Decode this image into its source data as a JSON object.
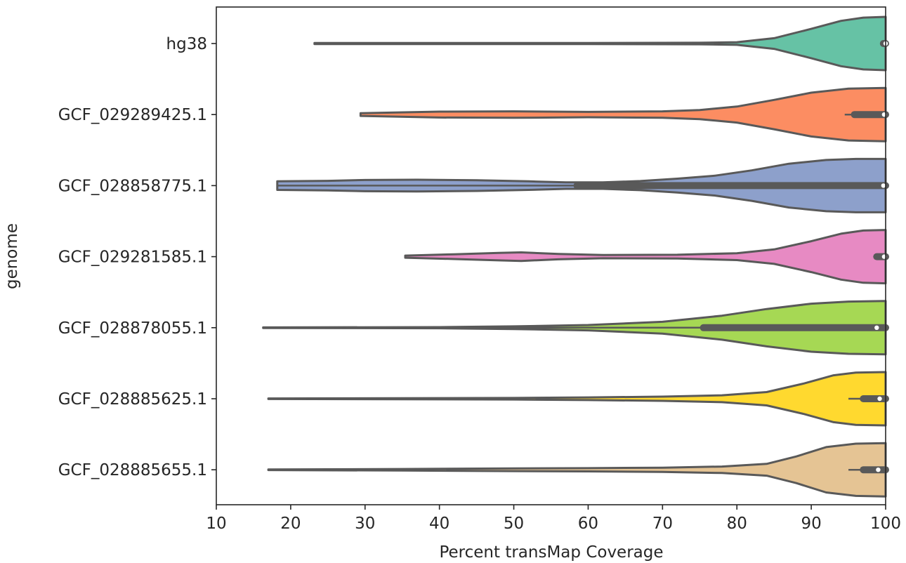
{
  "chart_data": {
    "type": "violin",
    "orientation": "horizontal",
    "xlabel": "Percent transMap Coverage",
    "ylabel": "genome",
    "xlim": [
      10,
      100
    ],
    "xticks": [
      10,
      20,
      30,
      40,
      50,
      60,
      70,
      80,
      90,
      100
    ],
    "grid": false,
    "categories": [
      "hg38",
      "GCF_029289425.1",
      "GCF_028858775.1",
      "GCF_029281585.1",
      "GCF_028878055.1",
      "GCF_028885625.1",
      "GCF_028885655.1"
    ],
    "colors": [
      "#66c2a5",
      "#fc8d62",
      "#8da0cb",
      "#e78ac3",
      "#a6d854",
      "#ffd92f",
      "#e5c494"
    ],
    "outline_color": "#595959",
    "series": [
      {
        "min": 23.2,
        "max": 100,
        "median": 100,
        "q1": 100,
        "q3": 100,
        "whisker_low": 100,
        "density": [
          [
            23.2,
            0.02
          ],
          [
            40,
            0.02
          ],
          [
            60,
            0.02
          ],
          [
            75,
            0.03
          ],
          [
            80,
            0.05
          ],
          [
            85,
            0.2
          ],
          [
            90,
            0.55
          ],
          [
            94,
            0.85
          ],
          [
            97,
            0.97
          ],
          [
            100,
            1.0
          ]
        ]
      },
      {
        "min": 29.4,
        "max": 100,
        "median": 99.8,
        "q1": 95.8,
        "q3": 100,
        "whisker_low": 94.5,
        "density": [
          [
            29.4,
            0.05
          ],
          [
            40,
            0.11
          ],
          [
            50,
            0.12
          ],
          [
            60,
            0.1
          ],
          [
            70,
            0.12
          ],
          [
            75,
            0.17
          ],
          [
            80,
            0.3
          ],
          [
            85,
            0.55
          ],
          [
            90,
            0.82
          ],
          [
            95,
            0.97
          ],
          [
            100,
            1.0
          ]
        ]
      },
      {
        "min": 18.2,
        "max": 100,
        "median": 99.7,
        "q1": 58.5,
        "q3": 100,
        "whisker_low": 18.2,
        "density": [
          [
            18.2,
            0.16
          ],
          [
            25,
            0.18
          ],
          [
            30,
            0.21
          ],
          [
            37,
            0.22
          ],
          [
            45,
            0.2
          ],
          [
            52,
            0.16
          ],
          [
            57,
            0.12
          ],
          [
            62,
            0.12
          ],
          [
            67,
            0.17
          ],
          [
            72,
            0.26
          ],
          [
            77,
            0.37
          ],
          [
            82,
            0.57
          ],
          [
            87,
            0.82
          ],
          [
            92,
            0.96
          ],
          [
            96,
            1.0
          ],
          [
            100,
            1.0
          ]
        ]
      },
      {
        "min": 35.4,
        "max": 100,
        "median": 99.8,
        "q1": 98.8,
        "q3": 100,
        "whisker_low": 98.8,
        "density": [
          [
            35.4,
            0.04
          ],
          [
            42,
            0.09
          ],
          [
            48,
            0.14
          ],
          [
            51,
            0.16
          ],
          [
            56,
            0.1
          ],
          [
            62,
            0.06
          ],
          [
            72,
            0.07
          ],
          [
            80,
            0.13
          ],
          [
            85,
            0.27
          ],
          [
            90,
            0.58
          ],
          [
            94,
            0.86
          ],
          [
            97,
            0.98
          ],
          [
            100,
            1.0
          ]
        ]
      },
      {
        "min": 16.3,
        "max": 100,
        "median": 98.8,
        "q1": 75.5,
        "q3": 100,
        "whisker_low": 44,
        "density": [
          [
            16.3,
            0.01
          ],
          [
            40,
            0.02
          ],
          [
            50,
            0.05
          ],
          [
            60,
            0.1
          ],
          [
            70,
            0.22
          ],
          [
            78,
            0.45
          ],
          [
            84,
            0.7
          ],
          [
            90,
            0.9
          ],
          [
            95,
            0.98
          ],
          [
            100,
            1.0
          ]
        ]
      },
      {
        "min": 17.0,
        "max": 100,
        "median": 99.2,
        "q1": 97.0,
        "q3": 100,
        "whisker_low": 95,
        "density": [
          [
            17,
            0.01
          ],
          [
            35,
            0.02
          ],
          [
            50,
            0.03
          ],
          [
            60,
            0.05
          ],
          [
            70,
            0.08
          ],
          [
            78,
            0.13
          ],
          [
            84,
            0.25
          ],
          [
            89,
            0.57
          ],
          [
            93,
            0.88
          ],
          [
            96,
            0.98
          ],
          [
            100,
            1.0
          ]
        ]
      },
      {
        "min": 17.0,
        "max": 100,
        "median": 99.0,
        "q1": 97.0,
        "q3": 100,
        "whisker_low": 95,
        "density": [
          [
            17,
            0.01
          ],
          [
            35,
            0.03
          ],
          [
            50,
            0.05
          ],
          [
            60,
            0.06
          ],
          [
            70,
            0.08
          ],
          [
            78,
            0.12
          ],
          [
            84,
            0.22
          ],
          [
            88,
            0.5
          ],
          [
            92,
            0.85
          ],
          [
            96,
            0.98
          ],
          [
            100,
            1.0
          ]
        ]
      }
    ]
  }
}
